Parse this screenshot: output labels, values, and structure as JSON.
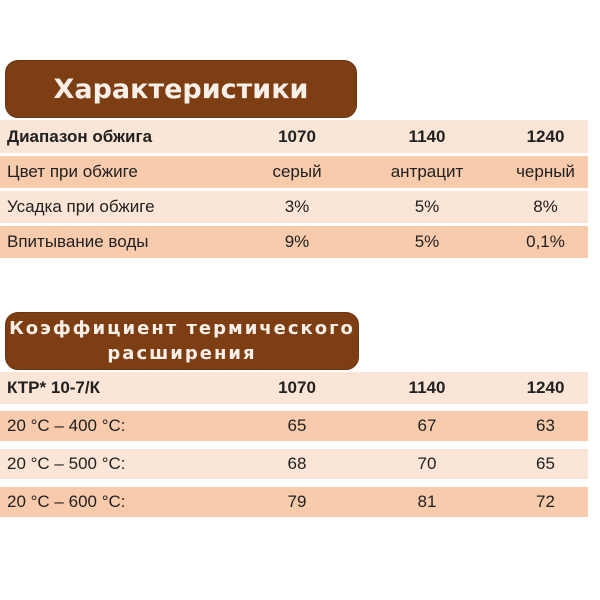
{
  "page": {
    "background": "#ffffff",
    "language": "ru"
  },
  "colors": {
    "badge_background": "#7e3e13",
    "badge_text": "#f8f0e8",
    "row_band_dark": "#f8cbad",
    "row_band_light": "#fbe5d6",
    "table_text": "#212121"
  },
  "section1": {
    "title": "Характеристики",
    "table": {
      "header": [
        "Диапазон обжига",
        "1070",
        "1140",
        "1240"
      ],
      "rows": [
        [
          "Цвет при обжиге",
          "серый",
          "антрацит",
          "черный"
        ],
        [
          "Усадка при обжиге",
          "3%",
          "5%",
          "8%"
        ],
        [
          "Впитывание воды",
          "9%",
          "5%",
          "0,1%"
        ]
      ]
    }
  },
  "section2": {
    "title_line1": "Коэффициент термического",
    "title_line2": "расширения",
    "table": {
      "header": [
        "КТР* 10-7/К",
        "1070",
        "1140",
        "1240"
      ],
      "rows": [
        [
          "20 °C – 400 °C:",
          "65",
          "67",
          "63"
        ],
        [
          "20 °C – 500 °C:",
          "68",
          "70",
          "65"
        ],
        [
          "20 °C – 600 °C:",
          "79",
          "81",
          "72"
        ]
      ]
    }
  }
}
